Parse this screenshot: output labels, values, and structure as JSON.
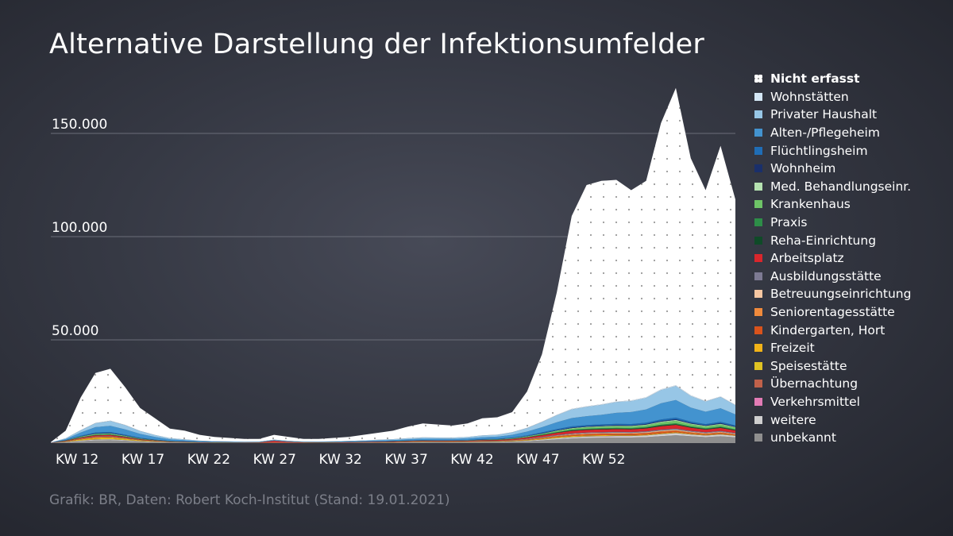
{
  "title": "Alternative Darstellung der Infektionsumfelder",
  "source": "Grafik: BR, Daten: Robert Koch-Institut (Stand: 19.01.2021)",
  "chart_data": {
    "type": "area",
    "stacked": true,
    "title": "Alternative Darstellung der Infektionsumfelder",
    "xlabel": "",
    "ylabel": "",
    "ylim": [
      0,
      180000
    ],
    "yticks": [
      50000,
      100000,
      150000
    ],
    "ytick_labels": [
      "50.000",
      "100.000",
      "150.000"
    ],
    "x_start_week": 10,
    "x_end_week": 62,
    "xtick_weeks": [
      12,
      17,
      22,
      27,
      32,
      37,
      42,
      47,
      52
    ],
    "xtick_labels": [
      "KW 12",
      "KW 17",
      "KW 22",
      "KW 27",
      "KW 32",
      "KW 37",
      "KW 42",
      "KW 47",
      "KW 52"
    ],
    "total": [
      500,
      6000,
      22000,
      34000,
      36000,
      27000,
      17000,
      12000,
      7000,
      6000,
      4000,
      3000,
      2500,
      2000,
      2000,
      4000,
      3000,
      2000,
      2000,
      2500,
      3000,
      4000,
      5000,
      6000,
      8000,
      9500,
      9000,
      8500,
      9500,
      12000,
      12500,
      15000,
      25000,
      43000,
      73000,
      110000,
      125000,
      127000,
      127500,
      122500,
      127000,
      155000,
      172000,
      138000,
      122500,
      144000,
      118000
    ],
    "series": [
      {
        "name": "unbekannt",
        "color": "#8f8f8f",
        "values": [
          50,
          400,
          900,
          1300,
          1400,
          1100,
          700,
          500,
          300,
          250,
          150,
          120,
          100,
          80,
          80,
          120,
          100,
          80,
          80,
          100,
          120,
          150,
          180,
          220,
          300,
          350,
          330,
          320,
          350,
          450,
          500,
          650,
          900,
          1300,
          1800,
          2200,
          2500,
          2600,
          2700,
          2700,
          2900,
          3400,
          3800,
          3300,
          2900,
          3300,
          2800
        ]
      },
      {
        "name": "weitere",
        "color": "#cfcfcf",
        "values": [
          20,
          150,
          300,
          400,
          420,
          330,
          220,
          160,
          100,
          80,
          50,
          40,
          35,
          30,
          30,
          40,
          35,
          30,
          30,
          35,
          40,
          50,
          60,
          70,
          100,
          110,
          100,
          100,
          110,
          140,
          150,
          200,
          300,
          400,
          550,
          650,
          700,
          720,
          740,
          740,
          780,
          900,
          1000,
          850,
          750,
          850,
          700
        ]
      },
      {
        "name": "Verkehrsmittel",
        "color": "#e27bb5",
        "values": [
          0,
          10,
          20,
          30,
          30,
          20,
          15,
          10,
          5,
          5,
          5,
          5,
          5,
          5,
          5,
          5,
          5,
          5,
          5,
          5,
          5,
          5,
          5,
          5,
          5,
          5,
          5,
          5,
          5,
          5,
          5,
          10,
          10,
          20,
          30,
          40,
          40,
          40,
          40,
          40,
          40,
          50,
          50,
          40,
          40,
          40,
          30
        ]
      },
      {
        "name": "Übernachtung",
        "color": "#c0614a",
        "values": [
          0,
          20,
          50,
          60,
          60,
          40,
          25,
          15,
          10,
          8,
          5,
          5,
          5,
          5,
          5,
          5,
          5,
          5,
          5,
          5,
          10,
          10,
          10,
          10,
          15,
          15,
          15,
          15,
          15,
          15,
          15,
          20,
          25,
          30,
          40,
          50,
          50,
          50,
          50,
          50,
          50,
          60,
          60,
          50,
          50,
          50,
          40
        ]
      },
      {
        "name": "Speisestätte",
        "color": "#e0c323",
        "values": [
          10,
          100,
          300,
          450,
          480,
          350,
          200,
          120,
          70,
          50,
          30,
          25,
          20,
          15,
          15,
          30,
          25,
          20,
          20,
          25,
          30,
          40,
          50,
          60,
          70,
          80,
          80,
          70,
          80,
          100,
          100,
          130,
          170,
          220,
          260,
          280,
          250,
          220,
          200,
          180,
          170,
          180,
          190,
          160,
          140,
          150,
          120
        ]
      },
      {
        "name": "Freizeit",
        "color": "#f2b318",
        "values": [
          10,
          100,
          250,
          380,
          400,
          300,
          180,
          110,
          60,
          45,
          30,
          25,
          20,
          15,
          15,
          30,
          25,
          20,
          20,
          25,
          30,
          35,
          45,
          55,
          65,
          75,
          70,
          65,
          70,
          90,
          90,
          110,
          150,
          200,
          240,
          260,
          240,
          220,
          200,
          180,
          170,
          180,
          190,
          160,
          140,
          150,
          120
        ]
      },
      {
        "name": "Kindergarten, Hort",
        "color": "#d9531c",
        "values": [
          10,
          80,
          200,
          250,
          200,
          120,
          60,
          30,
          20,
          15,
          10,
          10,
          10,
          10,
          10,
          15,
          15,
          10,
          10,
          10,
          15,
          20,
          25,
          30,
          40,
          50,
          55,
          60,
          70,
          90,
          110,
          140,
          200,
          300,
          400,
          500,
          550,
          600,
          620,
          600,
          650,
          700,
          600,
          450,
          400,
          450,
          350
        ]
      },
      {
        "name": "Seniorentagesstätte",
        "color": "#f08a3c",
        "values": [
          5,
          30,
          80,
          110,
          120,
          90,
          60,
          40,
          20,
          15,
          10,
          8,
          8,
          6,
          6,
          8,
          8,
          6,
          6,
          8,
          10,
          12,
          15,
          18,
          22,
          25,
          25,
          25,
          28,
          35,
          40,
          55,
          80,
          110,
          150,
          180,
          200,
          210,
          220,
          220,
          240,
          280,
          300,
          250,
          220,
          240,
          200
        ]
      },
      {
        "name": "Betreuungseinrichtung",
        "color": "#f6c7a2",
        "values": [
          5,
          30,
          80,
          110,
          110,
          80,
          50,
          30,
          20,
          15,
          10,
          8,
          8,
          6,
          6,
          8,
          8,
          6,
          6,
          8,
          10,
          12,
          15,
          18,
          22,
          25,
          25,
          25,
          30,
          40,
          45,
          60,
          90,
          120,
          160,
          200,
          220,
          240,
          250,
          250,
          270,
          300,
          320,
          270,
          240,
          260,
          220
        ]
      },
      {
        "name": "Ausbildungsstätte",
        "color": "#7d7a93",
        "values": [
          5,
          40,
          100,
          150,
          150,
          100,
          60,
          40,
          20,
          15,
          10,
          8,
          8,
          6,
          6,
          8,
          8,
          6,
          6,
          8,
          10,
          15,
          20,
          30,
          40,
          50,
          55,
          60,
          70,
          90,
          100,
          130,
          180,
          250,
          320,
          380,
          400,
          420,
          430,
          420,
          450,
          500,
          520,
          430,
          380,
          420,
          350
        ]
      },
      {
        "name": "Arbeitsplatz",
        "color": "#d9262c",
        "values": [
          20,
          150,
          350,
          500,
          520,
          400,
          260,
          160,
          100,
          90,
          80,
          80,
          80,
          100,
          150,
          800,
          350,
          150,
          120,
          130,
          150,
          180,
          200,
          220,
          250,
          280,
          270,
          260,
          280,
          330,
          350,
          430,
          600,
          800,
          1000,
          1200,
          1250,
          1300,
          1320,
          1300,
          1400,
          1650,
          1800,
          1500,
          1300,
          1450,
          1200
        ]
      },
      {
        "name": "Reha-Einrichtung",
        "color": "#0f4a28",
        "values": [
          5,
          30,
          80,
          120,
          130,
          100,
          60,
          40,
          25,
          20,
          15,
          12,
          10,
          10,
          10,
          15,
          12,
          10,
          10,
          12,
          15,
          18,
          22,
          25,
          30,
          35,
          35,
          35,
          40,
          50,
          55,
          70,
          100,
          140,
          180,
          220,
          240,
          250,
          260,
          260,
          280,
          320,
          340,
          290,
          260,
          290,
          240
        ]
      },
      {
        "name": "Praxis",
        "color": "#2d8e48",
        "values": [
          5,
          40,
          100,
          140,
          150,
          110,
          70,
          45,
          30,
          25,
          20,
          15,
          15,
          12,
          12,
          15,
          15,
          12,
          12,
          15,
          18,
          22,
          28,
          32,
          40,
          45,
          45,
          45,
          50,
          65,
          70,
          90,
          130,
          180,
          230,
          280,
          300,
          320,
          330,
          330,
          360,
          410,
          440,
          370,
          330,
          370,
          300
        ]
      },
      {
        "name": "Krankenhaus",
        "color": "#6ec467",
        "values": [
          10,
          80,
          250,
          380,
          400,
          300,
          190,
          120,
          70,
          50,
          35,
          28,
          25,
          20,
          20,
          25,
          22,
          20,
          20,
          25,
          30,
          35,
          45,
          55,
          70,
          80,
          80,
          80,
          90,
          120,
          130,
          170,
          260,
          380,
          500,
          620,
          700,
          750,
          800,
          800,
          900,
          1100,
          1200,
          1000,
          900,
          1000,
          850
        ]
      },
      {
        "name": "Med. Behandlungseinr.",
        "color": "#b5e2b1",
        "values": [
          5,
          30,
          90,
          130,
          140,
          100,
          60,
          40,
          25,
          20,
          15,
          12,
          10,
          10,
          10,
          12,
          10,
          10,
          10,
          12,
          15,
          18,
          22,
          25,
          30,
          35,
          35,
          35,
          40,
          50,
          55,
          70,
          100,
          140,
          180,
          220,
          250,
          270,
          280,
          280,
          300,
          350,
          380,
          320,
          290,
          320,
          270
        ]
      },
      {
        "name": "Wohnheim",
        "color": "#1a2f6b",
        "values": [
          5,
          40,
          120,
          180,
          190,
          150,
          100,
          70,
          45,
          35,
          25,
          20,
          18,
          16,
          16,
          20,
          18,
          16,
          16,
          18,
          20,
          25,
          30,
          35,
          45,
          50,
          50,
          50,
          55,
          70,
          75,
          95,
          130,
          180,
          220,
          260,
          280,
          290,
          300,
          300,
          320,
          370,
          400,
          340,
          300,
          340,
          290
        ]
      },
      {
        "name": "Flüchtlingsheim",
        "color": "#1f6db6",
        "values": [
          10,
          100,
          300,
          450,
          480,
          380,
          250,
          170,
          110,
          80,
          60,
          50,
          45,
          40,
          40,
          60,
          50,
          40,
          40,
          50,
          60,
          80,
          100,
          120,
          150,
          170,
          160,
          150,
          170,
          220,
          230,
          280,
          350,
          430,
          500,
          560,
          580,
          590,
          600,
          600,
          620,
          700,
          750,
          640,
          560,
          620,
          520
        ]
      },
      {
        "name": "Alten-/Pflegeheim",
        "color": "#4393cf",
        "values": [
          40,
          500,
          1500,
          2600,
          3000,
          2600,
          1900,
          1300,
          800,
          550,
          350,
          250,
          200,
          150,
          150,
          250,
          200,
          150,
          150,
          200,
          250,
          300,
          380,
          450,
          550,
          650,
          650,
          650,
          750,
          900,
          1000,
          1300,
          1800,
          2500,
          3300,
          4000,
          4300,
          4600,
          5300,
          5800,
          6400,
          7800,
          8500,
          6800,
          6000,
          6600,
          5300
        ]
      },
      {
        "name": "Privater Haushalt",
        "color": "#97c6e6",
        "values": [
          30,
          400,
          1100,
          1900,
          2300,
          2000,
          1400,
          900,
          550,
          400,
          260,
          200,
          170,
          140,
          140,
          200,
          180,
          140,
          140,
          180,
          220,
          270,
          330,
          400,
          500,
          580,
          570,
          560,
          650,
          820,
          900,
          1200,
          1700,
          2500,
          3400,
          4200,
          4500,
          4800,
          5200,
          5300,
          5600,
          6400,
          6800,
          5600,
          4900,
          5400,
          4400
        ]
      },
      {
        "name": "Wohnstätten",
        "color": "#d4e7f5",
        "values": [
          5,
          30,
          90,
          130,
          150,
          120,
          80,
          50,
          30,
          25,
          20,
          15,
          15,
          12,
          12,
          15,
          15,
          12,
          12,
          15,
          18,
          22,
          28,
          32,
          40,
          45,
          45,
          45,
          50,
          65,
          70,
          90,
          120,
          170,
          220,
          260,
          280,
          300,
          320,
          320,
          340,
          380,
          400,
          340,
          300,
          330,
          280
        ]
      },
      {
        "name": "Nicht erfasst",
        "color": "#ffffff",
        "remainder": true
      }
    ]
  }
}
